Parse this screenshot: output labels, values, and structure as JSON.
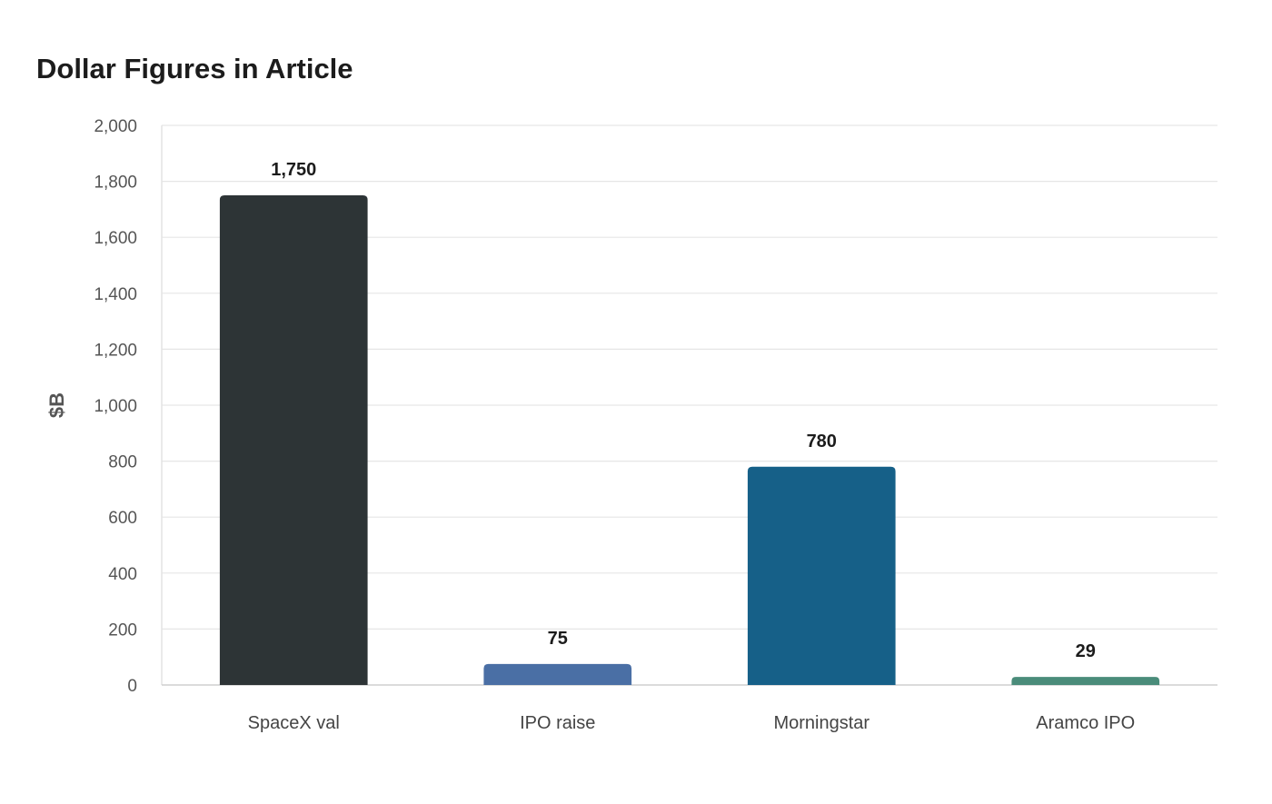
{
  "chart_data": {
    "type": "bar",
    "title": "Dollar Figures in Article",
    "xlabel": "",
    "ylabel": "$B",
    "categories": [
      "SpaceX val",
      "IPO raise",
      "Morningstar",
      "Aramco IPO"
    ],
    "values": [
      1750,
      75,
      780,
      29
    ],
    "value_labels": [
      "1,750",
      "75",
      "780",
      "29"
    ],
    "colors": [
      "#2d3436",
      "#4a6fa5",
      "#166088",
      "#4a8c7a"
    ],
    "ylim": [
      0,
      2000
    ],
    "yticks": [
      0,
      200,
      400,
      600,
      800,
      1000,
      1200,
      1400,
      1600,
      1800,
      2000
    ],
    "ytick_labels": [
      "0",
      "200",
      "400",
      "600",
      "800",
      "1,000",
      "1,200",
      "1,400",
      "1,600",
      "1,800",
      "2,000"
    ],
    "grid": true,
    "legend": "none"
  }
}
